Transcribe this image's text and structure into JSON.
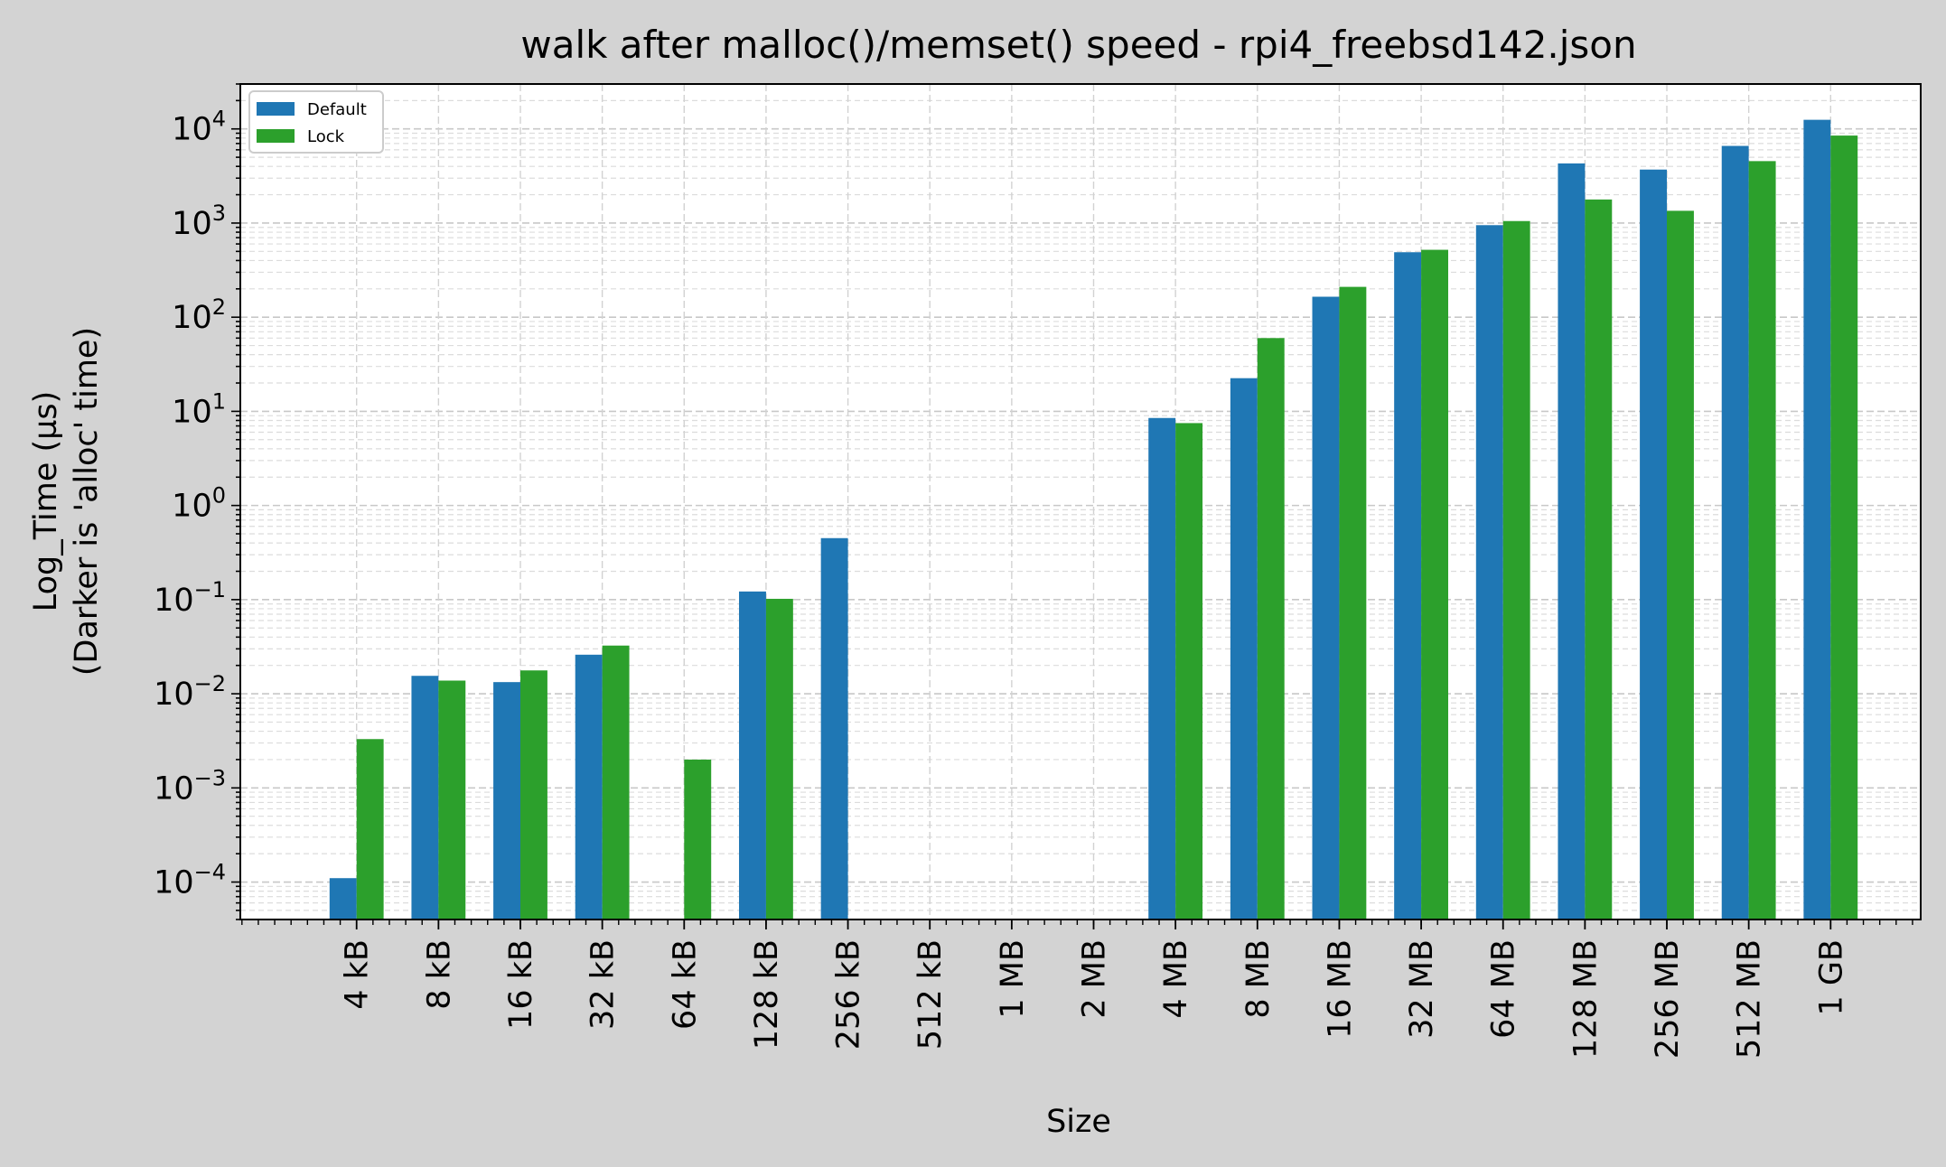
{
  "chart_data": {
    "type": "bar",
    "title": "walk after malloc()/memset() speed - rpi4_freebsd142.json",
    "xlabel": "Size",
    "ylabel_line1": "Log_Time (µs)",
    "ylabel_line2": "(Darker is 'alloc' time)",
    "yscale": "log",
    "ylim": [
      4e-05,
      30000
    ],
    "grid": true,
    "legend_position": "top-left",
    "categories": [
      "4 kB",
      "8 kB",
      "16 kB",
      "32 kB",
      "64 kB",
      "128 kB",
      "256 kB",
      "512 kB",
      "1 MB",
      "2 MB",
      "4 MB",
      "8 MB",
      "16 MB",
      "32 MB",
      "64 MB",
      "128 MB",
      "256 MB",
      "512 MB",
      "1 GB"
    ],
    "series": [
      {
        "name": "Default",
        "color": "#1f77b4",
        "values": [
          0.00011,
          0.0155,
          0.0133,
          0.026,
          null,
          0.122,
          0.45,
          null,
          null,
          null,
          8.5,
          22.5,
          165,
          490,
          950,
          4300,
          3700,
          6600,
          12500
        ]
      },
      {
        "name": "Lock",
        "color": "#2ca02c",
        "values": [
          0.0033,
          0.0138,
          0.0177,
          0.0325,
          0.002,
          0.102,
          null,
          null,
          null,
          null,
          7.5,
          60,
          210,
          520,
          1050,
          1780,
          1350,
          4550,
          8500
        ]
      }
    ],
    "yticks": [
      {
        "exp": "-4",
        "value": 0.0001
      },
      {
        "exp": "-3",
        "value": 0.001
      },
      {
        "exp": "-2",
        "value": 0.01
      },
      {
        "exp": "-1",
        "value": 0.1
      },
      {
        "exp": "0",
        "value": 1
      },
      {
        "exp": "1",
        "value": 10
      },
      {
        "exp": "2",
        "value": 100
      },
      {
        "exp": "3",
        "value": 1000
      },
      {
        "exp": "4",
        "value": 10000
      }
    ],
    "ytick_base": "10"
  }
}
